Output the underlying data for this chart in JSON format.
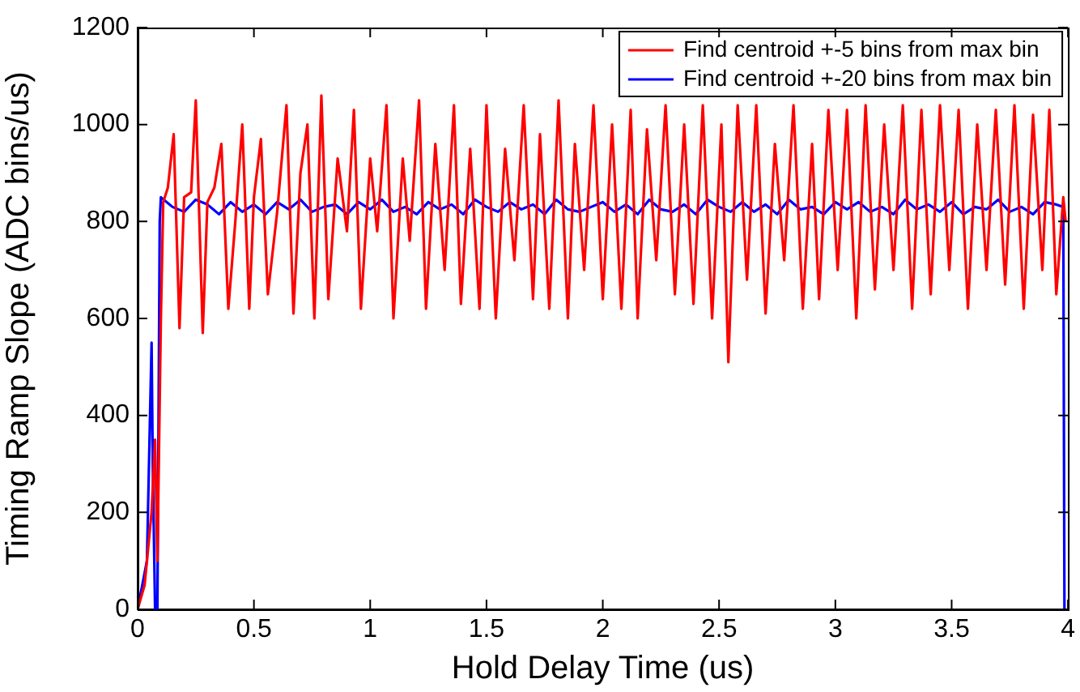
{
  "chart_data": {
    "type": "line",
    "xlabel": "Hold Delay Time (us)",
    "ylabel": "Timing Ramp Slope (ADC bins/us)",
    "xlim": [
      0,
      4
    ],
    "xticks": [
      0,
      0.5,
      1,
      1.5,
      2,
      2.5,
      3,
      3.5,
      4
    ],
    "ylim": [
      0,
      1200
    ],
    "yticks": [
      0,
      200,
      400,
      600,
      800,
      1000,
      1200
    ],
    "grid": false,
    "legend": "top right",
    "marker": "none",
    "line_style": "solid",
    "series": [
      {
        "name": "Find centroid +-5 bins from max bin",
        "color": "#ff0000",
        "x": [
          0,
          0.03,
          0.06,
          0.075,
          0.085,
          0.1,
          0.11,
          0.13,
          0.155,
          0.18,
          0.2,
          0.23,
          0.25,
          0.28,
          0.3,
          0.33,
          0.36,
          0.39,
          0.42,
          0.45,
          0.48,
          0.5,
          0.53,
          0.56,
          0.6,
          0.64,
          0.67,
          0.7,
          0.73,
          0.76,
          0.79,
          0.82,
          0.86,
          0.9,
          0.93,
          0.96,
          1.0,
          1.03,
          1.07,
          1.1,
          1.14,
          1.17,
          1.21,
          1.24,
          1.28,
          1.32,
          1.36,
          1.39,
          1.43,
          1.47,
          1.5,
          1.54,
          1.58,
          1.62,
          1.66,
          1.7,
          1.73,
          1.77,
          1.81,
          1.85,
          1.88,
          1.92,
          1.96,
          2.0,
          2.04,
          2.08,
          2.12,
          2.15,
          2.19,
          2.23,
          2.27,
          2.31,
          2.35,
          2.39,
          2.43,
          2.47,
          2.51,
          2.54,
          2.58,
          2.62,
          2.66,
          2.7,
          2.74,
          2.78,
          2.82,
          2.86,
          2.9,
          2.93,
          2.97,
          3.01,
          3.05,
          3.09,
          3.13,
          3.17,
          3.21,
          3.25,
          3.29,
          3.33,
          3.37,
          3.41,
          3.45,
          3.49,
          3.53,
          3.57,
          3.61,
          3.65,
          3.69,
          3.73,
          3.77,
          3.81,
          3.85,
          3.89,
          3.92,
          3.95,
          3.98,
          3.99
        ],
        "values": [
          0,
          50,
          200,
          350,
          100,
          600,
          840,
          870,
          980,
          580,
          850,
          860,
          1050,
          570,
          840,
          870,
          960,
          620,
          800,
          1000,
          620,
          850,
          970,
          650,
          820,
          1040,
          610,
          900,
          1000,
          600,
          1060,
          640,
          930,
          780,
          1030,
          620,
          930,
          780,
          1040,
          600,
          930,
          760,
          1050,
          620,
          960,
          700,
          1040,
          630,
          950,
          620,
          1040,
          600,
          950,
          720,
          1040,
          640,
          980,
          620,
          1050,
          600,
          960,
          700,
          1040,
          640,
          1000,
          620,
          1030,
          600,
          990,
          720,
          1040,
          650,
          1000,
          630,
          1040,
          600,
          1000,
          510,
          1040,
          680,
          1040,
          610,
          960,
          720,
          1040,
          620,
          960,
          640,
          1030,
          700,
          1030,
          600,
          1040,
          660,
          1000,
          700,
          1040,
          620,
          1030,
          650,
          1040,
          700,
          1030,
          620,
          1000,
          700,
          1030,
          670,
          1040,
          620,
          1020,
          700,
          1030,
          650,
          850,
          800
        ]
      },
      {
        "name": "Find centroid +-20 bins from max bin",
        "color": "#0000ff",
        "x": [
          0,
          0.04,
          0.06,
          0.065,
          0.075,
          0.085,
          0.095,
          0.1,
          0.15,
          0.2,
          0.25,
          0.3,
          0.35,
          0.4,
          0.45,
          0.5,
          0.55,
          0.6,
          0.65,
          0.7,
          0.75,
          0.8,
          0.85,
          0.9,
          0.95,
          1.0,
          1.05,
          1.1,
          1.15,
          1.2,
          1.25,
          1.3,
          1.35,
          1.4,
          1.45,
          1.5,
          1.55,
          1.6,
          1.65,
          1.7,
          1.75,
          1.8,
          1.85,
          1.9,
          1.95,
          2.0,
          2.05,
          2.1,
          2.15,
          2.2,
          2.25,
          2.3,
          2.35,
          2.4,
          2.45,
          2.5,
          2.55,
          2.6,
          2.65,
          2.7,
          2.75,
          2.8,
          2.85,
          2.9,
          2.95,
          3.0,
          3.05,
          3.1,
          3.15,
          3.2,
          3.25,
          3.3,
          3.35,
          3.4,
          3.45,
          3.5,
          3.55,
          3.6,
          3.65,
          3.7,
          3.75,
          3.8,
          3.85,
          3.9,
          3.95,
          3.98,
          3.985
        ],
        "values": [
          0,
          100,
          550,
          300,
          0,
          0,
          800,
          850,
          830,
          820,
          845,
          835,
          815,
          840,
          820,
          835,
          815,
          840,
          825,
          845,
          820,
          830,
          835,
          815,
          840,
          825,
          845,
          820,
          830,
          815,
          840,
          825,
          835,
          815,
          845,
          830,
          820,
          840,
          825,
          835,
          815,
          845,
          825,
          820,
          830,
          840,
          820,
          835,
          815,
          845,
          825,
          820,
          835,
          815,
          845,
          830,
          820,
          840,
          820,
          835,
          815,
          845,
          825,
          830,
          815,
          840,
          825,
          840,
          820,
          830,
          815,
          845,
          825,
          835,
          820,
          840,
          815,
          830,
          825,
          845,
          820,
          830,
          815,
          840,
          835,
          830,
          0
        ]
      }
    ]
  }
}
